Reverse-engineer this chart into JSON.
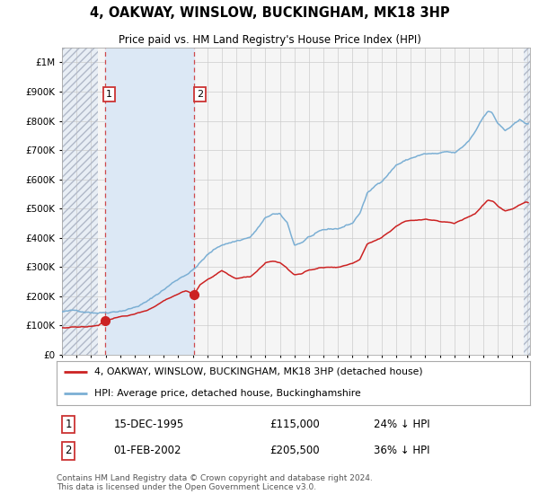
{
  "title": "4, OAKWAY, WINSLOW, BUCKINGHAM, MK18 3HP",
  "subtitle": "Price paid vs. HM Land Registry's House Price Index (HPI)",
  "legend_line1": "4, OAKWAY, WINSLOW, BUCKINGHAM, MK18 3HP (detached house)",
  "legend_line2": "HPI: Average price, detached house, Buckinghamshire",
  "sale1_date_label": "15-DEC-1995",
  "sale1_price_label": "£115,000",
  "sale1_pct_label": "24% ↓ HPI",
  "sale2_date_label": "01-FEB-2002",
  "sale2_price_label": "£205,500",
  "sale2_pct_label": "36% ↓ HPI",
  "footer": "Contains HM Land Registry data © Crown copyright and database right 2024.\nThis data is licensed under the Open Government Licence v3.0.",
  "sale1_year": 1995.958,
  "sale1_price": 115000,
  "sale2_year": 2002.083,
  "sale2_price": 205500,
  "hpi_color": "#7bafd4",
  "price_color": "#cc2222",
  "marker_color": "#cc2222",
  "shade_color": "#dce8f5",
  "bg_color": "#f5f5f5",
  "ylim_max": 1050000,
  "ylim_min": 0,
  "hpi_x": [
    1993.0,
    1994.0,
    1995.0,
    1995.5,
    1996.0,
    1997.0,
    1998.0,
    1999.0,
    2000.0,
    2001.0,
    2002.0,
    2002.5,
    2003.0,
    2004.0,
    2005.0,
    2006.0,
    2007.0,
    2007.5,
    2008.0,
    2008.5,
    2009.0,
    2009.5,
    2010.0,
    2011.0,
    2012.0,
    2013.0,
    2013.5,
    2014.0,
    2015.0,
    2016.0,
    2016.5,
    2017.0,
    2017.5,
    2018.0,
    2019.0,
    2019.5,
    2020.0,
    2020.5,
    2021.0,
    2021.5,
    2022.0,
    2022.3,
    2022.6,
    2023.0,
    2023.5,
    2024.0,
    2024.5,
    2024.9
  ],
  "hpi_y": [
    147000,
    148000,
    149000,
    149500,
    152000,
    162000,
    175000,
    198000,
    235000,
    272000,
    305000,
    330000,
    355000,
    390000,
    405000,
    420000,
    480000,
    495000,
    490000,
    460000,
    385000,
    395000,
    415000,
    430000,
    435000,
    455000,
    490000,
    555000,
    600000,
    658000,
    670000,
    680000,
    690000,
    695000,
    693000,
    695000,
    690000,
    705000,
    730000,
    768000,
    818000,
    835000,
    832000,
    795000,
    768000,
    785000,
    798000,
    790000
  ],
  "price_x": [
    1993.0,
    1994.0,
    1995.0,
    1995.5,
    1995.958,
    1996.5,
    1997.0,
    1998.0,
    1999.0,
    2000.0,
    2001.0,
    2001.5,
    2002.083,
    2002.5,
    2003.0,
    2004.0,
    2005.0,
    2006.0,
    2007.0,
    2007.5,
    2008.0,
    2008.5,
    2009.0,
    2009.5,
    2010.0,
    2011.0,
    2012.0,
    2013.0,
    2013.5,
    2014.0,
    2015.0,
    2016.0,
    2016.5,
    2017.0,
    2018.0,
    2019.0,
    2020.0,
    2020.5,
    2021.0,
    2021.5,
    2022.0,
    2022.3,
    2022.7,
    2023.0,
    2023.5,
    2024.0,
    2024.5,
    2024.9
  ],
  "price_y": [
    92000,
    94000,
    96000,
    98000,
    115000,
    118000,
    125000,
    135000,
    152000,
    180000,
    205000,
    215000,
    205500,
    240000,
    258000,
    288000,
    262000,
    268000,
    312000,
    315000,
    310000,
    290000,
    268000,
    272000,
    285000,
    292000,
    295000,
    305000,
    318000,
    370000,
    395000,
    435000,
    450000,
    457000,
    462000,
    455000,
    450000,
    460000,
    470000,
    485000,
    510000,
    525000,
    522000,
    505000,
    490000,
    495000,
    510000,
    520000
  ]
}
